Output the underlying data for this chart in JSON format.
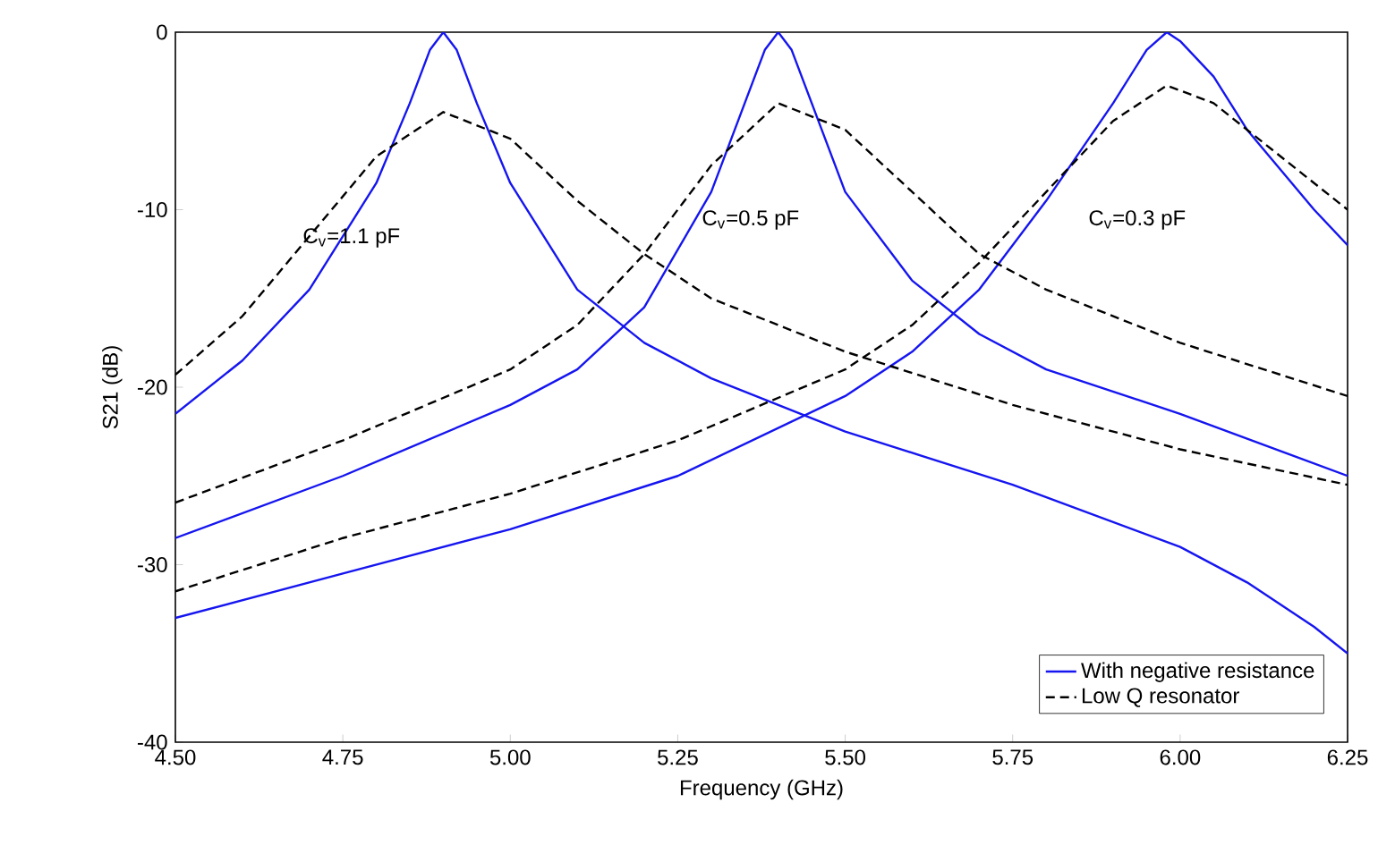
{
  "chart_data": {
    "type": "line",
    "xlabel": "Frequency (GHz)",
    "ylabel": "S21 (dB)",
    "xlim": [
      4.5,
      6.25
    ],
    "ylim": [
      -40,
      0
    ],
    "xticks": [
      {
        "value": 4.5,
        "label": "4.50"
      },
      {
        "value": 4.75,
        "label": "4.75"
      },
      {
        "value": 5.0,
        "label": "5.00"
      },
      {
        "value": 5.25,
        "label": "5.25"
      },
      {
        "value": 5.5,
        "label": "5.50"
      },
      {
        "value": 5.75,
        "label": "5.75"
      },
      {
        "value": 6.0,
        "label": "6.00"
      },
      {
        "value": 6.25,
        "label": "6.25"
      }
    ],
    "yticks": [
      -40,
      -30,
      -20,
      -10,
      0
    ],
    "legend": "bottom right",
    "grid": false,
    "series": [
      {
        "name": "With negative resistance",
        "color": "#1515f0",
        "line_style": "solid",
        "x": [
          4.5,
          4.6,
          4.7,
          4.8,
          4.85,
          4.88,
          4.9,
          4.92,
          4.95,
          5.0,
          5.1,
          5.2,
          5.3,
          5.4,
          5.5,
          5.75,
          6.0,
          6.1,
          6.2,
          6.25
        ],
        "values": [
          -21.5,
          -18.5,
          -14.5,
          -8.5,
          -4,
          -1,
          0,
          -1,
          -4,
          -8.5,
          -14.5,
          -17.5,
          -19.5,
          -21,
          -22.5,
          -25.5,
          -29,
          -31,
          -33.5,
          -35
        ]
      },
      {
        "color": "#1515f0",
        "line_style": "solid",
        "x": [
          4.5,
          4.75,
          5.0,
          5.1,
          5.2,
          5.3,
          5.35,
          5.38,
          5.4,
          5.42,
          5.45,
          5.5,
          5.6,
          5.7,
          5.8,
          6.0,
          6.25
        ],
        "values": [
          -28.5,
          -25,
          -21,
          -19,
          -15.5,
          -9,
          -4,
          -1,
          0,
          -1,
          -4,
          -9,
          -14,
          -17,
          -19,
          -21.5,
          -25
        ]
      },
      {
        "color": "#1515f0",
        "line_style": "solid",
        "x": [
          4.5,
          4.75,
          5.0,
          5.25,
          5.5,
          5.6,
          5.7,
          5.8,
          5.9,
          5.95,
          5.98,
          6.0,
          6.05,
          6.1,
          6.2,
          6.25
        ],
        "values": [
          -33,
          -30.5,
          -28,
          -25,
          -20.5,
          -18,
          -14.5,
          -9.5,
          -4,
          -1,
          0,
          -0.5,
          -2.5,
          -5.5,
          -10,
          -12
        ]
      },
      {
        "name": "Low Q resonator",
        "color": "#000000",
        "line_style": "dashed",
        "x": [
          4.5,
          4.6,
          4.7,
          4.8,
          4.9,
          5.0,
          5.1,
          5.2,
          5.3,
          5.4,
          5.5,
          5.75,
          6.0,
          6.25
        ],
        "values": [
          -19.3,
          -16,
          -11.5,
          -7,
          -4.5,
          -6,
          -9.5,
          -12.5,
          -15,
          -16.5,
          -18,
          -21,
          -23.5,
          -25.5
        ]
      },
      {
        "color": "#000000",
        "line_style": "dashed",
        "x": [
          4.5,
          4.75,
          5.0,
          5.1,
          5.2,
          5.3,
          5.4,
          5.5,
          5.6,
          5.7,
          5.8,
          6.0,
          6.25
        ],
        "values": [
          -26.5,
          -23,
          -19,
          -16.5,
          -12.5,
          -7.5,
          -4,
          -5.5,
          -9,
          -12.5,
          -14.5,
          -17.5,
          -20.5
        ]
      },
      {
        "color": "#000000",
        "line_style": "dashed",
        "x": [
          4.5,
          4.75,
          5.0,
          5.25,
          5.5,
          5.6,
          5.7,
          5.8,
          5.9,
          5.98,
          6.05,
          6.1,
          6.2,
          6.25
        ],
        "values": [
          -31.5,
          -28.5,
          -26,
          -23,
          -19,
          -16.5,
          -13,
          -9,
          -5,
          -3,
          -4,
          -5.5,
          -8.5,
          -10
        ]
      }
    ],
    "annotations": [
      "C$_{v}$=1.1 pF",
      "C$_{v}$=0.5 pF",
      "C$_{v}$=0.3 pF"
    ]
  }
}
